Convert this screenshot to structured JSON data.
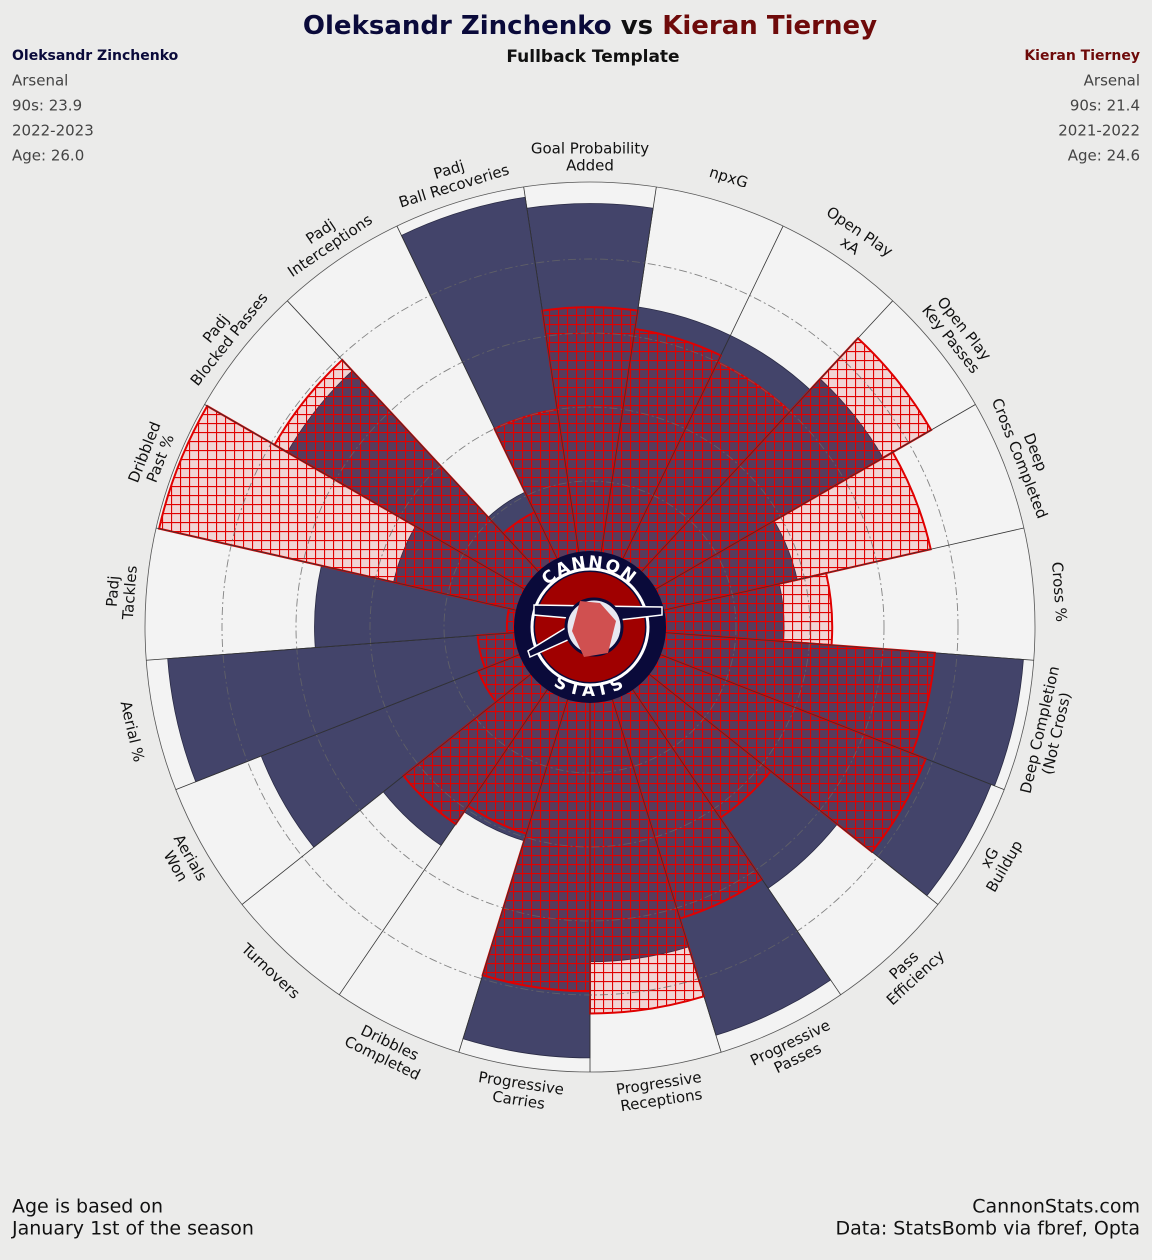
{
  "chart_data": {
    "type": "pizza",
    "title_connector": "vs",
    "subtitle": "Fullback Template",
    "categories": [
      "Goal Probability\nAdded",
      "npxG",
      "Open Play\nxA",
      "Open Play\nKey Passes",
      "Deep\nCross Completed",
      "Cross %",
      "Deep Completion\n(Not Cross)",
      "xG\nBuildup",
      "Pass\nEfficiency",
      "Progressive\nPasses",
      "Progressive\nReceptions",
      "Progressive\nCarries",
      "Dribbles\nCompleted",
      "Turnovers",
      "Aerials\nWon",
      "Aerial %",
      "Padj\nTackles",
      "Dribbled\nPast %",
      "Padj\nBlocked Passes",
      "Padj\nInterceptions",
      "Padj\nBall Recoveries"
    ],
    "series": [
      {
        "name": "Oleksandr Zinchenko",
        "color": "#43446a",
        "edgecolor": "#2a2b45",
        "title_color": "#0a0a3a",
        "info": [
          "Arsenal",
          "90s: 23.9",
          "2022-2023",
          "Age: 26.0"
        ],
        "values": [
          95,
          68,
          68,
          72,
          38,
          33,
          98,
          97,
          66,
          96,
          71,
          97,
          41,
          52,
          76,
          95,
          55,
          35,
          75,
          21,
          98
        ]
      },
      {
        "name": "Kieran Tierney",
        "color": "#e00000",
        "edgecolor": "#e00000",
        "title_color": "#6e0a0a",
        "info": [
          "Arsenal",
          "90s: 21.4",
          "2021-2022",
          "Age: 24.6"
        ],
        "values": [
          67,
          62,
          60,
          87,
          75,
          46,
          74,
          78,
          43,
          63,
          85,
          79,
          39,
          45,
          13,
          11,
          3,
          100,
          79,
          15,
          40
        ]
      }
    ],
    "rlim": [
      0,
      100
    ],
    "rticks": [
      20,
      40,
      60,
      80
    ],
    "logo": {
      "top": "CANNON",
      "bottom": "STATS"
    },
    "footnote": [
      "Age is based on",
      "January 1st of the season"
    ],
    "credits": [
      "CannonStats.com",
      "Data: StatsBomb via fbref, Opta"
    ]
  }
}
